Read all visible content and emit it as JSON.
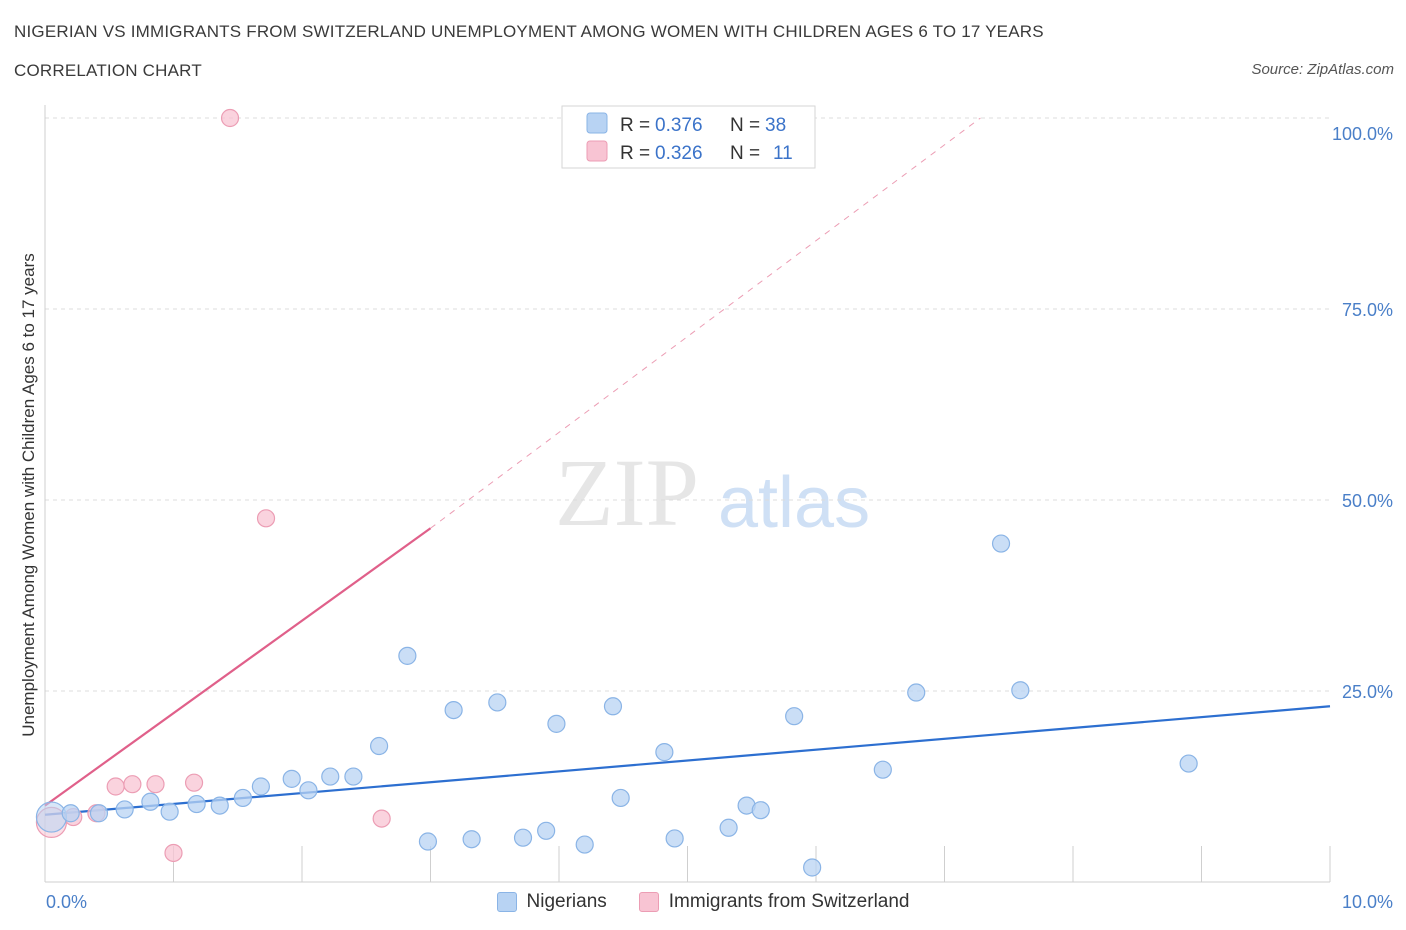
{
  "header": {
    "title": "NIGERIAN VS IMMIGRANTS FROM SWITZERLAND UNEMPLOYMENT AMONG WOMEN WITH CHILDREN AGES 6 TO 17 YEARS",
    "subtitle": "CORRELATION CHART",
    "source": "Source: ZipAtlas.com"
  },
  "watermark": {
    "zip": "ZIP",
    "atlas": "atlas"
  },
  "colors": {
    "blue_fill": "#b8d3f3",
    "blue_stroke": "#8ab4e6",
    "blue_line": "#2d6fd0",
    "pink_fill": "#f8c4d3",
    "pink_stroke": "#ec9db4",
    "pink_line": "#e0608a",
    "tick_text": "#4a7fc8",
    "grid": "#dcdcdc"
  },
  "legend_top": {
    "rows": [
      {
        "r_label": "R = ",
        "r_value": "0.376",
        "n_label": "N = ",
        "n_value": "38"
      },
      {
        "r_label": "R = ",
        "r_value": "0.326",
        "n_label": "N = ",
        "n_value": "11"
      }
    ]
  },
  "legend_bottom": {
    "items": [
      {
        "label": "Nigerians"
      },
      {
        "label": "Immigrants from Switzerland"
      }
    ]
  },
  "chart_data": {
    "type": "scatter",
    "title": "NIGERIAN VS IMMIGRANTS FROM SWITZERLAND UNEMPLOYMENT AMONG WOMEN WITH CHILDREN AGES 6 TO 17 YEARS",
    "xlabel": "",
    "ylabel": "Unemployment Among Women with Children Ages 6 to 17 years",
    "xlim": [
      0,
      10
    ],
    "ylim": [
      0,
      100
    ],
    "x_tick_labels": [
      "0.0%",
      "10.0%"
    ],
    "y_ticks": [
      25,
      50,
      75,
      100
    ],
    "y_tick_labels": [
      "25.0%",
      "50.0%",
      "75.0%",
      "100.0%"
    ],
    "series": [
      {
        "name": "Nigerians",
        "R": 0.376,
        "N": 38,
        "trend": {
          "x": [
            0,
            10
          ],
          "y": [
            8.8,
            23.0
          ],
          "style": "solid"
        },
        "points": [
          {
            "x": 0.05,
            "y": 8.5,
            "big": true
          },
          {
            "x": 0.2,
            "y": 9.0
          },
          {
            "x": 0.42,
            "y": 9.0
          },
          {
            "x": 0.62,
            "y": 9.5
          },
          {
            "x": 0.82,
            "y": 10.5
          },
          {
            "x": 0.97,
            "y": 9.2
          },
          {
            "x": 1.18,
            "y": 10.2
          },
          {
            "x": 1.36,
            "y": 10.0
          },
          {
            "x": 1.54,
            "y": 11.0
          },
          {
            "x": 1.68,
            "y": 12.5
          },
          {
            "x": 1.92,
            "y": 13.5
          },
          {
            "x": 2.05,
            "y": 12.0
          },
          {
            "x": 2.22,
            "y": 13.8
          },
          {
            "x": 2.4,
            "y": 13.8
          },
          {
            "x": 2.6,
            "y": 17.8
          },
          {
            "x": 2.82,
            "y": 29.6
          },
          {
            "x": 2.98,
            "y": 5.3
          },
          {
            "x": 3.18,
            "y": 22.5
          },
          {
            "x": 3.32,
            "y": 5.6
          },
          {
            "x": 3.52,
            "y": 23.5
          },
          {
            "x": 3.72,
            "y": 5.8
          },
          {
            "x": 3.9,
            "y": 6.7
          },
          {
            "x": 3.98,
            "y": 20.7
          },
          {
            "x": 4.2,
            "y": 4.9
          },
          {
            "x": 4.42,
            "y": 23.0
          },
          {
            "x": 4.48,
            "y": 11.0
          },
          {
            "x": 4.82,
            "y": 17.0
          },
          {
            "x": 4.9,
            "y": 5.7
          },
          {
            "x": 5.32,
            "y": 7.1
          },
          {
            "x": 5.46,
            "y": 10.0
          },
          {
            "x": 5.57,
            "y": 9.4
          },
          {
            "x": 5.83,
            "y": 21.7
          },
          {
            "x": 5.97,
            "y": 1.9
          },
          {
            "x": 6.52,
            "y": 14.7
          },
          {
            "x": 6.78,
            "y": 24.8
          },
          {
            "x": 7.44,
            "y": 44.3
          },
          {
            "x": 7.59,
            "y": 25.1
          },
          {
            "x": 8.9,
            "y": 15.5
          }
        ]
      },
      {
        "name": "Immigrants from Switzerland",
        "R": 0.326,
        "N": 11,
        "trend": {
          "x": [
            0,
            3.0
          ],
          "y": [
            10.0,
            46.3
          ],
          "style": "solid",
          "extended_to": {
            "x": 7.28,
            "y": 100.0
          }
        },
        "points": [
          {
            "x": 0.05,
            "y": 7.8,
            "big": true
          },
          {
            "x": 0.22,
            "y": 8.5
          },
          {
            "x": 0.4,
            "y": 9.0
          },
          {
            "x": 0.55,
            "y": 12.5
          },
          {
            "x": 0.68,
            "y": 12.8
          },
          {
            "x": 0.86,
            "y": 12.8
          },
          {
            "x": 1.0,
            "y": 3.8
          },
          {
            "x": 1.16,
            "y": 13.0
          },
          {
            "x": 1.44,
            "y": 100.0
          },
          {
            "x": 1.72,
            "y": 47.6
          },
          {
            "x": 2.62,
            "y": 8.3
          }
        ]
      }
    ]
  }
}
